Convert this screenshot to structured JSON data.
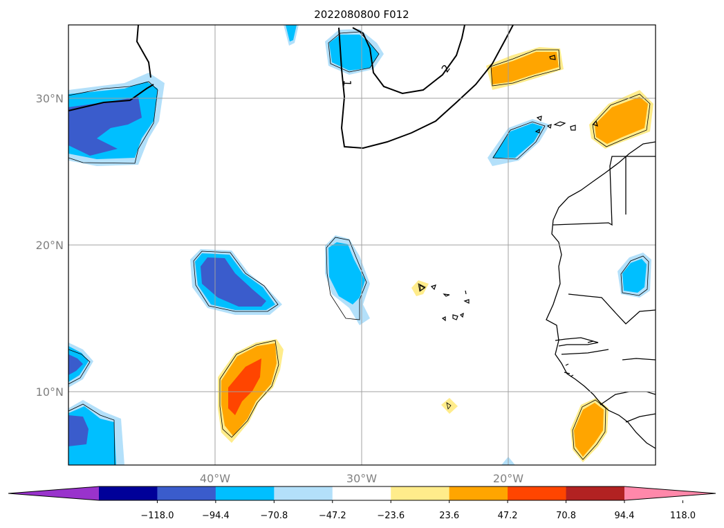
{
  "title": "2022080800 F012",
  "map": {
    "lat_labels": [
      "30°N",
      "20°N",
      "10°N"
    ],
    "lon_labels": [
      "40°W",
      "30°W",
      "20°W"
    ],
    "lat_range": [
      5,
      35
    ],
    "lon_range": [
      -50,
      -10
    ],
    "gridlines": true,
    "contour_labels": [
      "1",
      "2"
    ]
  },
  "colorbar": {
    "tick_labels": [
      "−118.0",
      "−94.4",
      "−70.8",
      "−47.2",
      "−23.6",
      "23.6",
      "47.2",
      "70.8",
      "94.4",
      "118.0"
    ],
    "colors": [
      "#9933cc",
      "#000099",
      "#3a5ccc",
      "#00bfff",
      "#b3e0fa",
      "#ffffff",
      "#ffec8b",
      "#ffa500",
      "#ff4500",
      "#b22222",
      "#ff88aa"
    ],
    "extend": "both"
  },
  "palette": {
    "neg_light": "#b3e0fa",
    "neg_mid": "#00bfff",
    "neg_strong": "#3a5ccc",
    "pos_light": "#ffec8b",
    "pos_mid": "#ffa500",
    "pos_strong": "#ff4500"
  }
}
